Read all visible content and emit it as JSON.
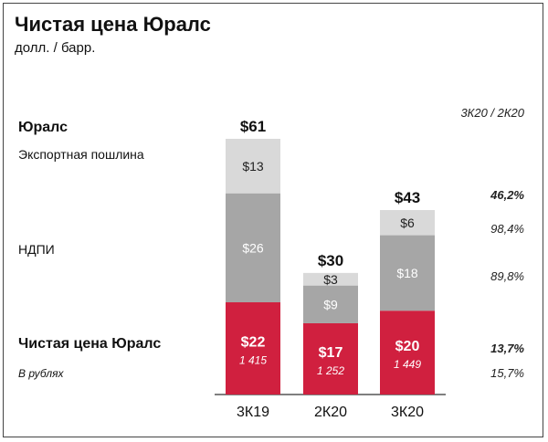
{
  "title": "Чистая цена Юралс",
  "subtitle": "долл. / барр.",
  "row_labels": {
    "urals": "Юралс",
    "export_duty": "Экспортная пошлина",
    "mineral_tax": "НДПИ",
    "net_urals": "Чистая цена Юралс",
    "in_rubles": "В рублях"
  },
  "change_header": "3К20 / 2К20",
  "change_values": [
    "46,2%",
    "98,4%",
    "89,8%",
    "13,7%",
    "15,7%"
  ],
  "colors": {
    "export_duty": "#d9d9d9",
    "mineral_tax": "#a6a6a6",
    "net_urals": "#d0203f"
  },
  "chart_data": {
    "type": "bar",
    "stacked": true,
    "categories": [
      "3К19",
      "2К20",
      "3К20"
    ],
    "series": [
      {
        "key": "net_urals",
        "value_labels": [
          "$22",
          "$17",
          "$20"
        ],
        "values": [
          22,
          17,
          20
        ],
        "rub_labels": [
          "1 415",
          "1 252",
          "1 449"
        ]
      },
      {
        "key": "mineral_tax",
        "value_labels": [
          "$26",
          "$9",
          "$18"
        ],
        "values": [
          26,
          9,
          18
        ]
      },
      {
        "key": "export_duty",
        "value_labels": [
          "$13",
          "$3",
          "$6"
        ],
        "values": [
          13,
          3,
          6
        ]
      }
    ],
    "totals": [
      61,
      30,
      43
    ],
    "total_labels": [
      "$61",
      "$30",
      "$43"
    ],
    "ylim": [
      0,
      61
    ]
  }
}
